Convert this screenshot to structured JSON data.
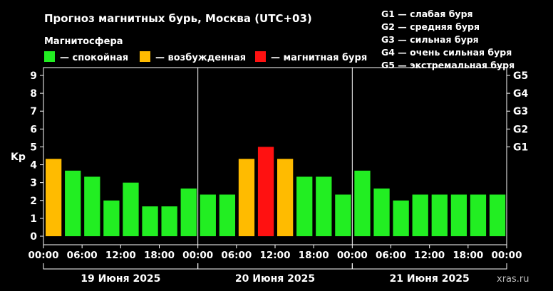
{
  "chart_data": {
    "type": "bar",
    "title": "Прогноз магнитных бурь, Москва (UTC+03)",
    "legend_title": "Магнитосфера",
    "legend": [
      {
        "label": "— спокойная",
        "color": "#22ee22"
      },
      {
        "label": "— возбужденная",
        "color": "#ffbb00"
      },
      {
        "label": "— магнитная буря",
        "color": "#ff1111"
      }
    ],
    "storm_scale": [
      "G1 — слабая буря",
      "G2 — средняя буря",
      "G3 — сильная буря",
      "G4 — очень сильная буря",
      "G5 — экстремальная буря"
    ],
    "ylabel": "Kp",
    "ylim": [
      0,
      9
    ],
    "yticks": [
      "0",
      "1",
      "2",
      "3",
      "4",
      "5",
      "6",
      "7",
      "8",
      "9"
    ],
    "right_ticks": [
      {
        "label": "G1",
        "value": 5
      },
      {
        "label": "G2",
        "value": 6
      },
      {
        "label": "G3",
        "value": 7
      },
      {
        "label": "G4",
        "value": 8
      },
      {
        "label": "G5",
        "value": 9
      }
    ],
    "xtick_labels": [
      "00:00",
      "06:00",
      "12:00",
      "18:00",
      "00:00",
      "06:00",
      "12:00",
      "18:00",
      "00:00",
      "06:00",
      "12:00",
      "18:00",
      "00:00"
    ],
    "days": [
      "19 Июня 2025",
      "20 Июня 2025",
      "21 Июня 2025"
    ],
    "values": [
      4.33,
      3.67,
      3.33,
      2.0,
      3.0,
      1.67,
      1.67,
      2.67,
      2.33,
      2.33,
      4.33,
      5.0,
      4.33,
      3.33,
      3.33,
      2.33,
      3.67,
      2.67,
      2.0,
      2.33,
      2.33,
      2.33,
      2.33,
      2.33
    ],
    "levels": [
      "excited",
      "quiet",
      "quiet",
      "quiet",
      "quiet",
      "quiet",
      "quiet",
      "quiet",
      "quiet",
      "quiet",
      "excited",
      "storm",
      "excited",
      "quiet",
      "quiet",
      "quiet",
      "quiet",
      "quiet",
      "quiet",
      "quiet",
      "quiet",
      "quiet",
      "quiet",
      "quiet"
    ],
    "colors": {
      "quiet": "#22ee22",
      "excited": "#ffbb00",
      "storm": "#ff1111"
    },
    "watermark": "xras.ru"
  }
}
